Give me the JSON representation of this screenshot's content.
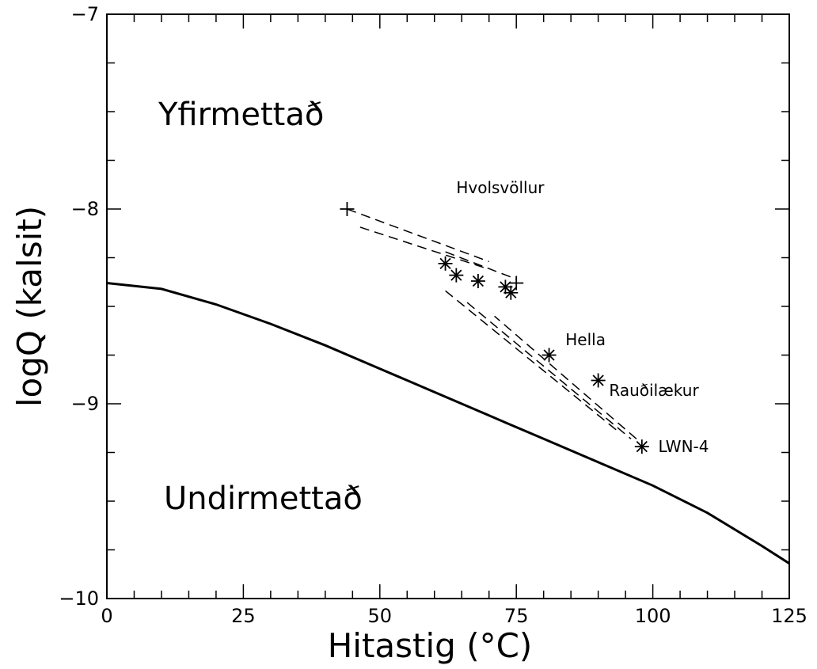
{
  "chart_data": {
    "type": "line",
    "xlabel": "Hitastig (°C)",
    "ylabel": "logQ (kalsit)",
    "xlim": [
      0,
      125
    ],
    "ylim": [
      -10,
      -7
    ],
    "x_ticks_labeled": [
      0,
      25,
      50,
      75,
      100,
      125
    ],
    "x_tick_labels": [
      "0",
      "25",
      "50",
      "75",
      "100",
      "125"
    ],
    "y_ticks_labeled": [
      -10,
      -9,
      -8,
      -7
    ],
    "y_tick_labels": [
      "−10",
      "−9",
      "−8",
      "−7"
    ],
    "grid": false,
    "curve": {
      "x": [
        0,
        10,
        20,
        30,
        40,
        50,
        60,
        70,
        80,
        90,
        100,
        110,
        120,
        125
      ],
      "y": [
        -8.38,
        -8.41,
        -8.49,
        -8.59,
        -8.7,
        -8.82,
        -8.94,
        -9.06,
        -9.18,
        -9.3,
        -9.42,
        -9.56,
        -9.73,
        -9.82
      ]
    },
    "region_labels": [
      "Yfirmettað",
      "Undirmettað"
    ],
    "points": [
      {
        "x": 44,
        "y": -8.0,
        "marker": "plus"
      },
      {
        "x": 62,
        "y": -8.28,
        "marker": "asterisk"
      },
      {
        "x": 64,
        "y": -8.34,
        "marker": "asterisk"
      },
      {
        "x": 68,
        "y": -8.37,
        "marker": "asterisk"
      },
      {
        "x": 73,
        "y": -8.4,
        "marker": "asterisk"
      },
      {
        "x": 74,
        "y": -8.43,
        "marker": "asterisk"
      },
      {
        "x": 75,
        "y": -8.38,
        "marker": "plus"
      },
      {
        "x": 81,
        "y": -8.75,
        "marker": "asterisk"
      },
      {
        "x": 90,
        "y": -8.88,
        "marker": "asterisk"
      },
      {
        "x": 98,
        "y": -9.22,
        "marker": "asterisk"
      }
    ],
    "point_labels": [
      {
        "text": "Hvolsvöllur",
        "x": 64,
        "y": -7.89
      },
      {
        "text": "Hella",
        "x": 84,
        "y": -8.67
      },
      {
        "text": "Rauðilækur",
        "x": 92,
        "y": -8.93
      },
      {
        "text": "LWN-4",
        "x": 101,
        "y": -9.22
      }
    ],
    "dashed_paths": [
      {
        "x": [
          44,
          70
        ],
        "y": [
          -8.0,
          -8.27
        ]
      },
      {
        "x": [
          69,
          46
        ],
        "y": [
          -8.3,
          -8.09
        ]
      },
      {
        "x": [
          62,
          75
        ],
        "y": [
          -8.22,
          -8.36
        ]
      },
      {
        "x": [
          62,
          94
        ],
        "y": [
          -8.42,
          -9.15
        ]
      },
      {
        "x": [
          97,
          71
        ],
        "y": [
          -9.18,
          -8.55
        ]
      },
      {
        "x": [
          66,
          96
        ],
        "y": [
          -8.48,
          -9.18
        ]
      }
    ]
  }
}
